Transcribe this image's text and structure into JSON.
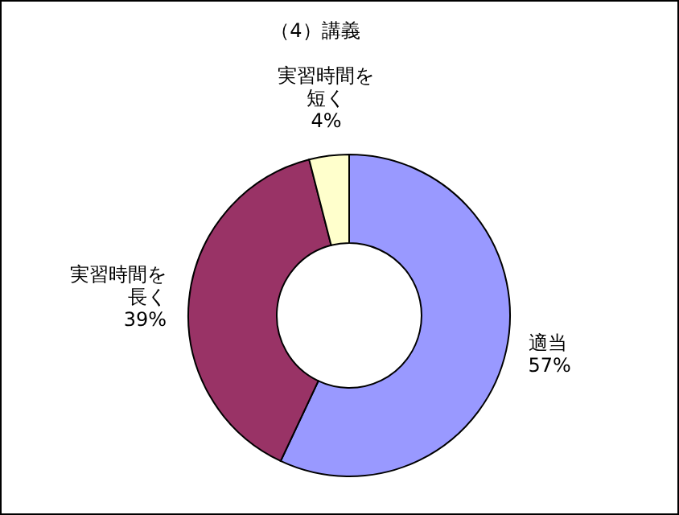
{
  "chart_data": {
    "type": "donut",
    "title": "（4）講義",
    "categories": [
      "適当",
      "実習時間を長く",
      "実習時間を短く"
    ],
    "values": [
      57,
      39,
      4
    ],
    "colors": [
      "#9999ff",
      "#993366",
      "#ffffcc"
    ],
    "value_labels": [
      "57%",
      "39%",
      "4%"
    ]
  }
}
